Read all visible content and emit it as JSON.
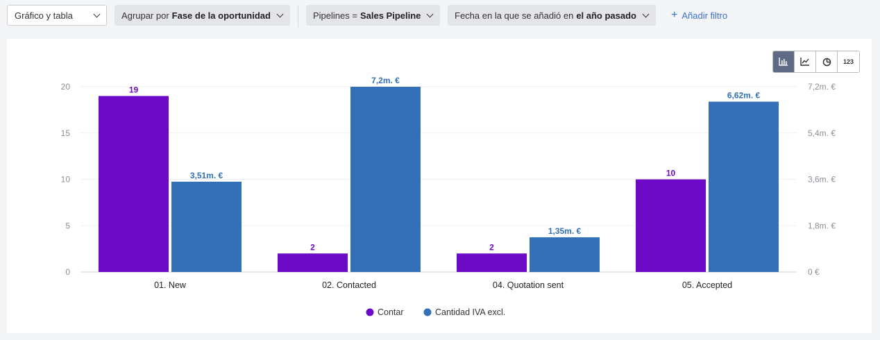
{
  "toolbar": {
    "view_select": "Gráfico y tabla",
    "group_by": {
      "prefix": "Agrupar por",
      "value": "Fase de la oportunidad"
    },
    "pipeline_filter": {
      "prefix": "Pipelines =",
      "value": "Sales Pipeline"
    },
    "date_filter": {
      "prefix": "Fecha en la que se añadió en",
      "value": "el año pasado"
    },
    "add_filter": "Añadir filtro"
  },
  "chart_switcher": {
    "options": [
      "bar-chart-icon",
      "line-chart-icon",
      "pie-chart-icon",
      "number-icon"
    ],
    "active": "bar-chart-icon",
    "number_label": "123"
  },
  "chart_data": {
    "type": "bar",
    "categories": [
      "01. New",
      "02. Contacted",
      "04. Quotation sent",
      "05. Accepted"
    ],
    "series": [
      {
        "name": "Contar",
        "axis": "left",
        "color": "#6c0ac8",
        "values": [
          19,
          2,
          2,
          10
        ],
        "labels": [
          "19",
          "2",
          "2",
          "10"
        ]
      },
      {
        "name": "Cantidad IVA excl.",
        "axis": "right",
        "color": "#3370b8",
        "values": [
          3.51,
          7.2,
          1.35,
          6.62
        ],
        "labels": [
          "3,51m. €",
          "7,2m. €",
          "1,35m. €",
          "6,62m. €"
        ]
      }
    ],
    "y_left": {
      "ylim": [
        0,
        20
      ],
      "ticks": [
        "0",
        "5",
        "10",
        "15",
        "20"
      ]
    },
    "y_right": {
      "ylim": [
        0,
        7.2
      ],
      "ticks": [
        "0 €",
        "1,8m. €",
        "3,6m. €",
        "5,4m. €",
        "7,2m. €"
      ]
    },
    "grid": true,
    "legend": "bottom-center"
  }
}
